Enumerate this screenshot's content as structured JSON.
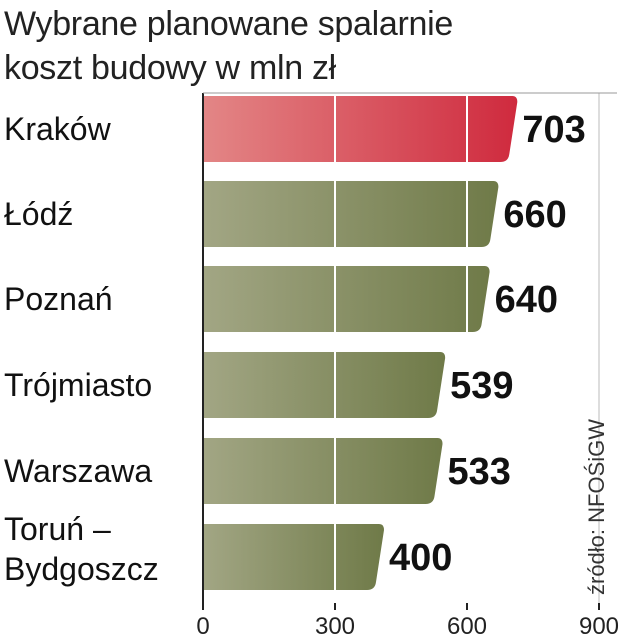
{
  "chart_data": {
    "type": "bar",
    "orientation": "horizontal",
    "title": [
      "Wybrane planowane spalarnie",
      "koszt budowy w mln zł"
    ],
    "categories": [
      [
        "Kraków"
      ],
      [
        "Łódź"
      ],
      [
        "Poznań"
      ],
      [
        "Trójmiasto"
      ],
      [
        "Warszawa"
      ],
      [
        "Toruń –",
        "Bydgoszcz"
      ]
    ],
    "values": [
      703,
      660,
      640,
      539,
      533,
      400
    ],
    "value_labels": [
      "703",
      "660",
      "640",
      "539",
      "533",
      "400"
    ],
    "highlight_index": 0,
    "xlim": [
      0,
      900
    ],
    "ticks": [
      0,
      300,
      600,
      900
    ],
    "tick_labels": [
      "0",
      "300",
      "600",
      "900"
    ],
    "grid": true,
    "source": "źródło: NFOŚiGW",
    "colors": {
      "bar": "#6f7a48",
      "bar_light": "#a2a684",
      "highlight": "#cf2a3e",
      "highlight_light": "#e38686",
      "highlight_text": "#c81d3a",
      "text": "#111111",
      "axis": "#222222"
    }
  }
}
